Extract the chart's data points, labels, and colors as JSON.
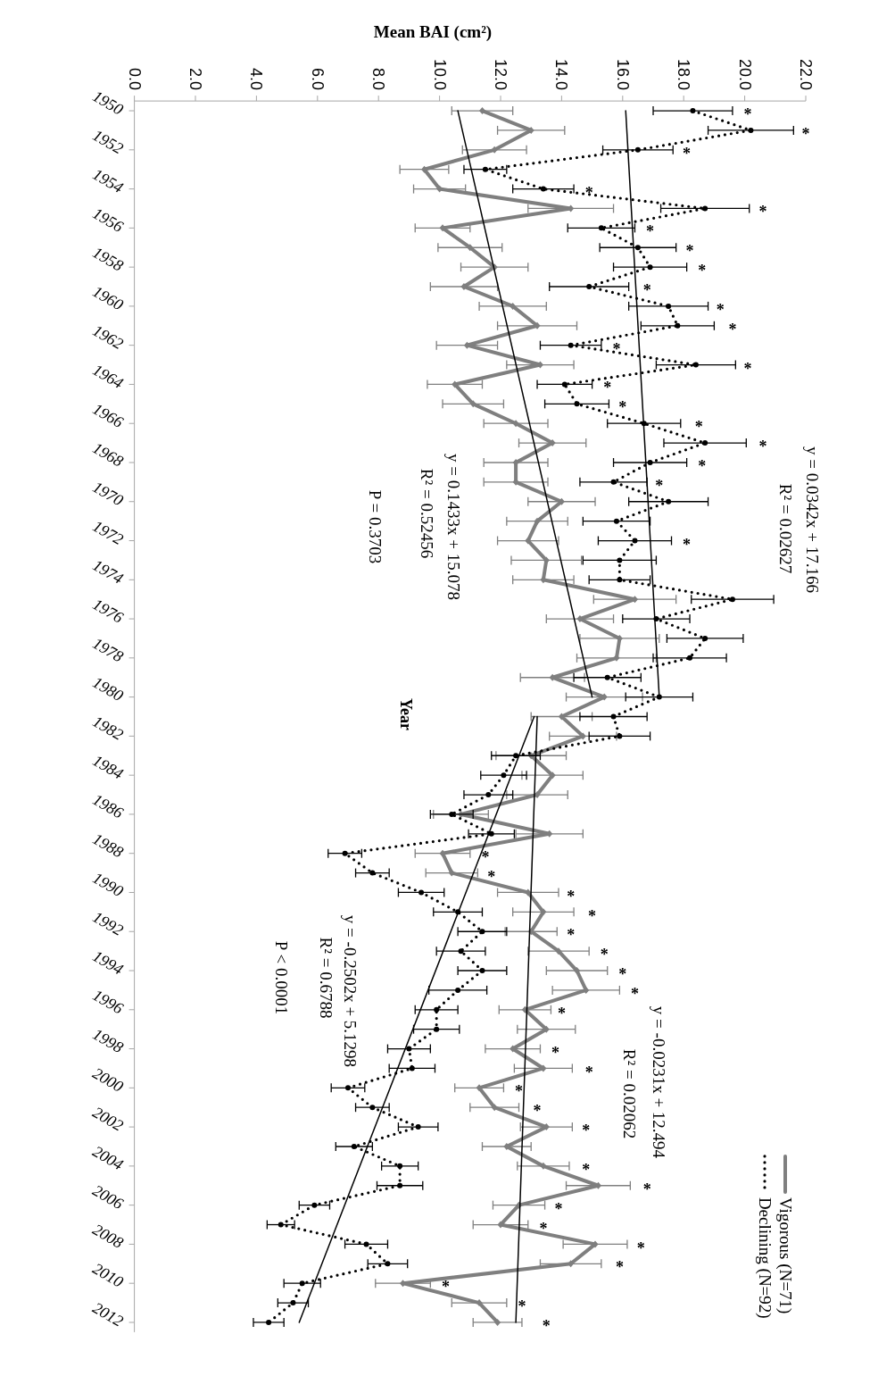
{
  "chart_data": {
    "type": "line",
    "xlabel": "Mean BAI (cm²)",
    "ylabel": "Year",
    "xlim": [
      0,
      22
    ],
    "xticks": [
      {
        "value": 0,
        "label": "0.0"
      },
      {
        "value": 2,
        "label": "2.0"
      },
      {
        "value": 4,
        "label": "4.0"
      },
      {
        "value": 6,
        "label": "6.0"
      },
      {
        "value": 8,
        "label": "8.0"
      },
      {
        "value": 10,
        "label": "10.0"
      },
      {
        "value": 12,
        "label": "12.0"
      },
      {
        "value": 14,
        "label": "14.0"
      },
      {
        "value": 16,
        "label": "16.0"
      },
      {
        "value": 18,
        "label": "18.0"
      },
      {
        "value": 20,
        "label": "20.0"
      },
      {
        "value": 22,
        "label": "22.0"
      }
    ],
    "ylim": [
      2012.5,
      1949.5
    ],
    "yticks": [
      1950,
      1952,
      1954,
      1956,
      1958,
      1960,
      1962,
      1964,
      1966,
      1968,
      1970,
      1972,
      1974,
      1976,
      1978,
      1980,
      1982,
      1984,
      1986,
      1988,
      1990,
      1992,
      1994,
      1996,
      1998,
      2000,
      2002,
      2004,
      2006,
      2008,
      2010,
      2012
    ],
    "legend": "bottom right",
    "series": [
      {
        "name": "Vigorous (N=71)",
        "color": "#7f7f7f",
        "marker": "diamond",
        "line_style": "solid",
        "x": [
          11.4,
          13.0,
          11.8,
          9.5,
          10.0,
          14.3,
          10.1,
          11.0,
          11.8,
          10.8,
          12.4,
          13.2,
          10.9,
          13.3,
          10.5,
          11.1,
          12.5,
          13.7,
          12.5,
          12.5,
          14.0,
          13.2,
          12.9,
          13.5,
          13.4,
          16.4,
          14.6,
          15.9,
          15.8,
          13.7,
          15.4,
          14.0,
          14.7,
          13.0,
          13.7,
          13.2,
          10.7,
          13.6,
          10.1,
          10.4,
          12.9,
          13.4,
          13.0,
          13.9,
          14.5,
          14.8,
          12.8,
          13.5,
          12.4,
          13.4,
          11.3,
          11.8,
          13.5,
          12.2,
          13.4,
          15.2,
          12.6,
          12.0,
          15.1,
          14.3,
          8.8,
          11.3,
          11.9
        ],
        "values": [
          1950,
          1951,
          1952,
          1953,
          1954,
          1955,
          1956,
          1957,
          1958,
          1959,
          1960,
          1961,
          1962,
          1963,
          1964,
          1965,
          1966,
          1967,
          1968,
          1969,
          1970,
          1971,
          1972,
          1973,
          1974,
          1975,
          1976,
          1977,
          1978,
          1979,
          1980,
          1981,
          1982,
          1983,
          1984,
          1985,
          1986,
          1987,
          1988,
          1989,
          1990,
          1991,
          1992,
          1993,
          1994,
          1995,
          1996,
          1997,
          1998,
          1999,
          2000,
          2001,
          2002,
          2003,
          2004,
          2005,
          2006,
          2007,
          2008,
          2009,
          2010,
          2011,
          2012
        ],
        "xerrors": [
          1.0,
          1.1,
          1.05,
          0.8,
          0.85,
          1.4,
          0.9,
          1.05,
          1.1,
          1.1,
          1.1,
          1.3,
          1.0,
          1.1,
          0.9,
          1.0,
          1.05,
          1.1,
          1.05,
          1.05,
          1.1,
          1.0,
          1.0,
          1.15,
          1.0,
          1.35,
          1.1,
          1.3,
          1.3,
          1.05,
          1.25,
          1.0,
          1.1,
          1.15,
          1.0,
          1.0,
          0.9,
          1.1,
          0.9,
          0.85,
          1.0,
          1.0,
          0.85,
          1.0,
          1.0,
          1.1,
          0.85,
          0.95,
          0.9,
          0.95,
          0.8,
          0.8,
          0.85,
          0.8,
          0.85,
          1.05,
          0.85,
          0.9,
          1.05,
          1.0,
          0.9,
          0.9,
          0.8
        ]
      },
      {
        "name": "Declining (N=92)",
        "color": "#000000",
        "marker": "circle",
        "line_style": "dotted",
        "x": [
          18.3,
          20.2,
          16.5,
          11.5,
          13.4,
          18.7,
          15.3,
          16.5,
          16.9,
          14.9,
          17.5,
          17.8,
          14.3,
          18.4,
          14.1,
          14.5,
          16.7,
          18.7,
          16.9,
          15.7,
          17.5,
          15.8,
          16.4,
          15.9,
          15.9,
          19.6,
          17.1,
          18.7,
          18.2,
          15.5,
          17.2,
          15.7,
          15.9,
          12.5,
          12.1,
          11.6,
          10.4,
          11.7,
          6.9,
          7.8,
          9.4,
          10.6,
          11.4,
          10.7,
          11.4,
          10.6,
          9.9,
          9.9,
          9.0,
          9.1,
          7.0,
          7.8,
          9.3,
          7.2,
          8.7,
          8.7,
          5.9,
          4.8,
          7.6,
          8.3,
          5.5,
          5.2,
          4.4
        ],
        "values": [
          1950,
          1951,
          1952,
          1953,
          1954,
          1955,
          1956,
          1957,
          1958,
          1959,
          1960,
          1961,
          1962,
          1963,
          1964,
          1965,
          1966,
          1967,
          1968,
          1969,
          1970,
          1971,
          1972,
          1973,
          1974,
          1975,
          1976,
          1977,
          1978,
          1979,
          1980,
          1981,
          1982,
          1983,
          1984,
          1985,
          1986,
          1987,
          1988,
          1989,
          1990,
          1991,
          1992,
          1993,
          1994,
          1995,
          1996,
          1997,
          1998,
          1999,
          2000,
          2001,
          2002,
          2003,
          2004,
          2005,
          2006,
          2007,
          2008,
          2009,
          2010,
          2011,
          2012
        ],
        "xerrors": [
          1.3,
          1.4,
          1.15,
          0.7,
          1.0,
          1.45,
          1.1,
          1.25,
          1.2,
          1.3,
          1.3,
          1.2,
          1.0,
          1.3,
          0.9,
          1.05,
          1.2,
          1.35,
          1.2,
          1.1,
          1.3,
          1.1,
          1.2,
          1.2,
          1.0,
          1.35,
          1.1,
          1.25,
          1.2,
          1.1,
          1.1,
          1.1,
          1.0,
          0.8,
          0.75,
          0.8,
          0.7,
          0.75,
          0.55,
          0.55,
          0.75,
          0.8,
          0.8,
          0.8,
          0.8,
          0.95,
          0.7,
          0.75,
          0.7,
          0.75,
          0.55,
          0.55,
          0.65,
          0.6,
          0.6,
          0.75,
          0.5,
          0.45,
          0.7,
          0.65,
          0.6,
          0.5,
          0.5
        ]
      },
      {
        "type": "line",
        "color": "#000000",
        "marker": "none",
        "line_style": "solid",
        "x": [
          10.6,
          15.0
        ],
        "values": [
          1950,
          1980
        ]
      },
      {
        "type": "line",
        "color": "#000000",
        "marker": "none",
        "line_style": "solid",
        "x": [
          16.1,
          17.2
        ],
        "values": [
          1950,
          1980
        ]
      },
      {
        "type": "line",
        "color": "#000000",
        "marker": "none",
        "line_style": "solid",
        "x": [
          13.2,
          12.5
        ],
        "values": [
          1981,
          2012
        ]
      },
      {
        "type": "line",
        "color": "#000000",
        "marker": "none",
        "line_style": "solid",
        "x": [
          13.1,
          5.4
        ],
        "values": [
          1981,
          2012
        ]
      }
    ],
    "annotations": [
      "y = 0.0342x + 17.166",
      "R² = 0.02627",
      "y = 0.1433x + 15.078",
      "R² = 0.52456",
      "P = 0.3703",
      "y = -0.2502x + 5.1298",
      "R² = 0.6788",
      "P < 0.0001",
      "y = -0.0231x + 12.494",
      "R² = 0.02062",
      "*",
      "*",
      "*",
      "*",
      "*",
      "*",
      "*",
      "*",
      "*",
      "*",
      "*",
      "*",
      "*",
      "*",
      "*",
      "*",
      "*",
      "*",
      "*",
      "*",
      "*",
      "*",
      "*",
      "*",
      "*",
      "*",
      "*",
      "*",
      "*",
      "*",
      "*",
      "*",
      "*",
      "*",
      "*",
      "*",
      "*",
      "*",
      "*",
      "*",
      "*",
      "*",
      "*"
    ]
  }
}
